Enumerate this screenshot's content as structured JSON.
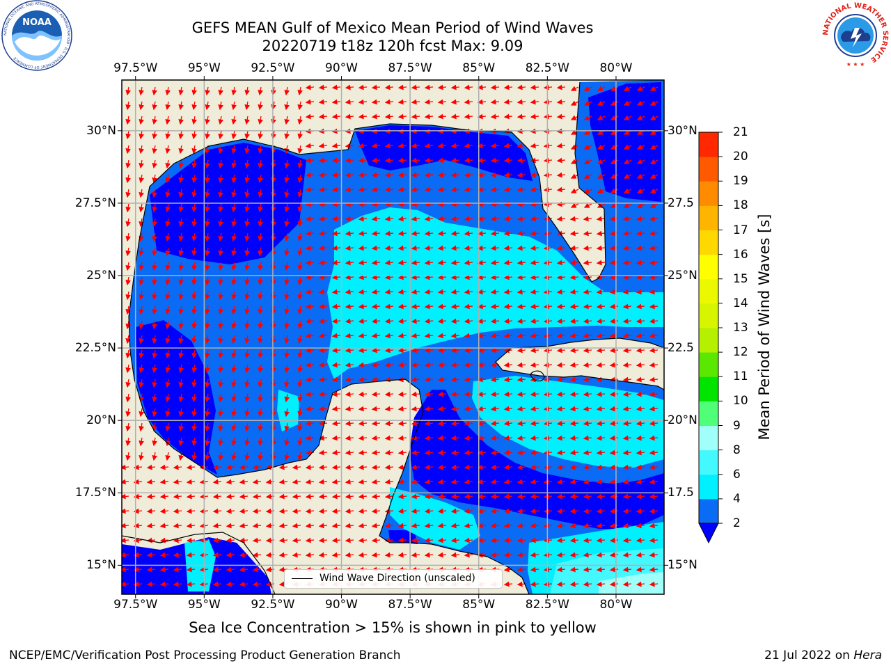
{
  "header": {
    "title_line1": "GEFS MEAN Gulf of Mexico Mean Period of Wind Waves",
    "title_line2": "20220719 t18z 120h fcst   Max: 9.09"
  },
  "logos": {
    "left": {
      "text": "NOAA",
      "ring_text": "NATIONAL OCEANIC AND ATMOSPHERIC ADMINISTRATION · U.S. DEPARTMENT OF COMMERCE"
    },
    "right": {
      "ring_text": "NATIONAL WEATHER SERVICE"
    }
  },
  "map": {
    "lon_labels": [
      "97.5°W",
      "95°W",
      "92.5°W",
      "90°W",
      "87.5°W",
      "85°W",
      "82.5°W",
      "80°W"
    ],
    "lat_labels_left": [
      "30°N",
      "27.5°N",
      "25°N",
      "22.5°N",
      "20°N",
      "17.5°N",
      "15°N"
    ],
    "lat_labels_right": [
      "30°N",
      "27.5",
      "25°N",
      "22.5",
      "20°N",
      "17.5",
      "15°N"
    ],
    "lon_values": [
      -97.5,
      -95,
      -92.5,
      -90,
      -87.5,
      -85,
      -82.5,
      -80
    ],
    "lat_values": [
      30,
      27.5,
      25,
      22.5,
      20,
      17.5,
      15
    ],
    "extent": {
      "lon": [
        -98,
        -78.25
      ],
      "lat": [
        14,
        31.75
      ]
    },
    "land_color": "#efedd9",
    "grid": true,
    "arrow_color": "#ff0000"
  },
  "legend": {
    "label": "Wind Wave Direction (unscaled)"
  },
  "colorbar": {
    "title": "Mean Period of Wind Waves [s]",
    "ticks": [
      "2",
      "4",
      "6",
      "8",
      "9",
      "10",
      "11",
      "12",
      "13",
      "14",
      "15",
      "16",
      "17",
      "18",
      "19",
      "20",
      "21"
    ],
    "colors": [
      "#0a6cf5",
      "#00f0ff",
      "#44f8ff",
      "#a0fff8",
      "#50ff78",
      "#00e400",
      "#5ae800",
      "#b4f000",
      "#d8f500",
      "#ecf800",
      "#ffff00",
      "#ffd800",
      "#ffb400",
      "#ff8c00",
      "#ff5a00",
      "#ff2800"
    ],
    "extend_color": "#0000ff"
  },
  "notes": {
    "ice": "Sea Ice Concentration > 15% is shown in pink to yellow"
  },
  "footer": {
    "left": "NCEP/EMC/Verification Post Processing Product Generation Branch",
    "date": "21 Jul 2022 on ",
    "host": "Hera"
  }
}
